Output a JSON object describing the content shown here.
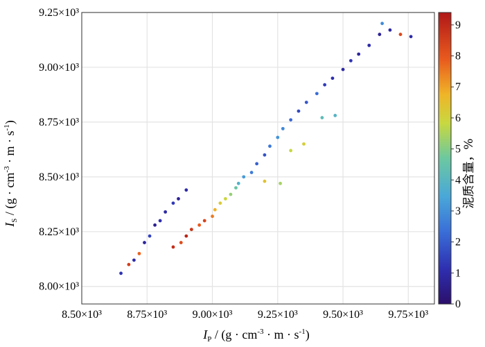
{
  "chart_data": {
    "type": "scatter",
    "xlabel": "I_P / (g·cm⁻³·m·s⁻¹)",
    "ylabel": "I_S / (g·cm⁻³·m·s⁻¹)",
    "xlim": [
      8500,
      9850
    ],
    "ylim": [
      7920,
      9250
    ],
    "x_ticks": [
      8500,
      8750,
      9000,
      9250,
      9500,
      9750
    ],
    "x_tick_labels": [
      "8.50×10³",
      "8.75×10³",
      "9.00×10³",
      "9.25×10³",
      "9.50×10³",
      "9.75×10³"
    ],
    "y_ticks": [
      8000,
      8250,
      8500,
      8750,
      9000,
      9250
    ],
    "y_tick_labels": [
      "8.00×10³",
      "8.25×10³",
      "8.50×10³",
      "8.75×10³",
      "9.00×10³",
      "9.25×10³"
    ],
    "grid": true,
    "colorbar": {
      "title": "泥质含量，%",
      "min": 0,
      "max": 9.4,
      "ticks": [
        0,
        1,
        2,
        3,
        4,
        5,
        6,
        7,
        8,
        9
      ],
      "colormap": "jet"
    },
    "series": [
      {
        "description_trend": "clay content lower along upper-left edge of the band; higher along lower-right edge at low impedance",
        "points": [
          [
            8650,
            8060,
            1.2
          ],
          [
            8680,
            8100,
            8.5
          ],
          [
            8700,
            8120,
            1.0
          ],
          [
            8720,
            8150,
            7.8
          ],
          [
            8740,
            8200,
            0.8
          ],
          [
            8760,
            8230,
            1.5
          ],
          [
            8780,
            8280,
            0.6
          ],
          [
            8800,
            8300,
            1.1
          ],
          [
            8820,
            8340,
            0.9
          ],
          [
            8850,
            8380,
            1.3
          ],
          [
            8870,
            8400,
            0.7
          ],
          [
            8900,
            8440,
            1.0
          ],
          [
            8850,
            8180,
            8.9
          ],
          [
            8880,
            8200,
            8.2
          ],
          [
            8900,
            8230,
            9.1
          ],
          [
            8920,
            8260,
            8.7
          ],
          [
            8950,
            8280,
            7.9
          ],
          [
            8970,
            8300,
            8.4
          ],
          [
            9000,
            8320,
            7.5
          ],
          [
            9010,
            8350,
            6.8
          ],
          [
            9030,
            8380,
            6.2
          ],
          [
            9050,
            8400,
            5.9
          ],
          [
            9070,
            8420,
            5.2
          ],
          [
            9090,
            8450,
            4.6
          ],
          [
            9100,
            8470,
            3.8
          ],
          [
            9120,
            8500,
            3.2
          ],
          [
            9150,
            8520,
            2.6
          ],
          [
            9170,
            8560,
            2.1
          ],
          [
            9200,
            8600,
            1.8
          ],
          [
            9220,
            8640,
            2.5
          ],
          [
            9250,
            8680,
            3.1
          ],
          [
            9270,
            8720,
            2.8
          ],
          [
            9300,
            8760,
            2.2
          ],
          [
            9330,
            8800,
            1.6
          ],
          [
            9360,
            8840,
            1.9
          ],
          [
            9400,
            8880,
            2.3
          ],
          [
            9430,
            8920,
            1.4
          ],
          [
            9460,
            8950,
            1.1
          ],
          [
            9500,
            8990,
            0.9
          ],
          [
            9530,
            9030,
            1.2
          ],
          [
            9560,
            9060,
            0.8
          ],
          [
            9600,
            9100,
            1.0
          ],
          [
            9640,
            9150,
            0.7
          ],
          [
            9680,
            9170,
            0.9
          ],
          [
            9720,
            9150,
            8.3
          ],
          [
            9760,
            9140,
            1.0
          ],
          [
            9650,
            9200,
            2.9
          ],
          [
            9300,
            8620,
            5.8
          ],
          [
            9350,
            8650,
            6.1
          ],
          [
            9200,
            8480,
            6.4
          ],
          [
            9420,
            8770,
            4.2
          ],
          [
            9470,
            8780,
            3.9
          ],
          [
            9260,
            8470,
            5.4
          ]
        ]
      }
    ]
  }
}
